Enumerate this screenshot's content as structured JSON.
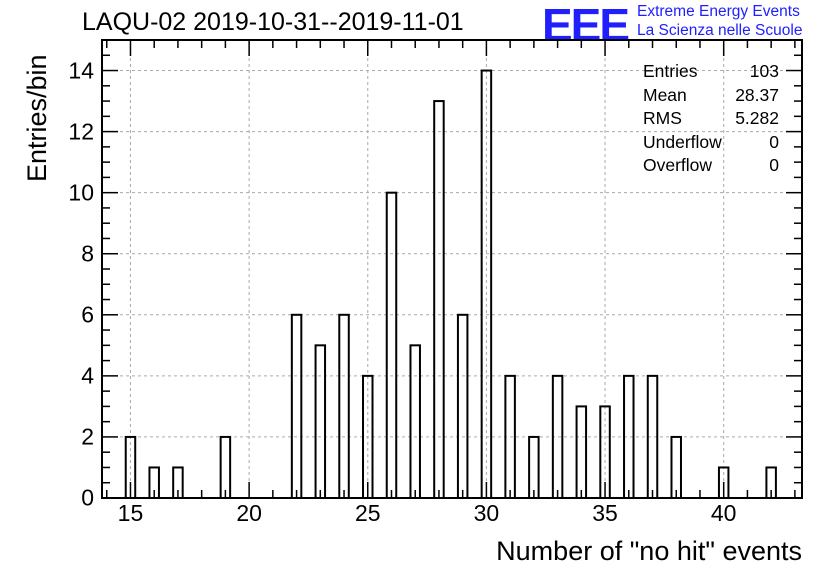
{
  "title": "LAQU-02 2019-10-31--2019-11-01",
  "logo": {
    "mark": "EEE",
    "line1": "Extreme Energy Events",
    "line2": "La Scienza nelle Scuole",
    "color": "#2020ff"
  },
  "stats": {
    "entries_label": "Entries",
    "entries_value": "103",
    "mean_label": "Mean",
    "mean_value": "28.37",
    "rms_label": "RMS",
    "rms_value": "5.282",
    "underflow_label": "Underflow",
    "underflow_value": "0",
    "overflow_label": "Overflow",
    "overflow_value": "0"
  },
  "chart_data": {
    "type": "bar",
    "xlabel": "Number of \"no hit\" events",
    "ylabel": "Entries/bin",
    "xlim": [
      13.8,
      43.3
    ],
    "ylim": [
      0,
      15
    ],
    "grid": true,
    "bin_width": 0.4,
    "xticks": [
      15,
      20,
      25,
      30,
      35,
      40
    ],
    "yticks": [
      0,
      2,
      4,
      6,
      8,
      10,
      12,
      14
    ],
    "x": [
      15,
      16,
      17,
      19,
      22,
      23,
      24,
      25,
      26,
      27,
      28,
      29,
      30,
      31,
      32,
      33,
      34,
      35,
      36,
      37,
      38,
      40,
      42
    ],
    "values": [
      2,
      1,
      1,
      2,
      6,
      5,
      6,
      4,
      10,
      5,
      13,
      6,
      14,
      4,
      2,
      4,
      3,
      3,
      4,
      4,
      2,
      1,
      1
    ]
  }
}
